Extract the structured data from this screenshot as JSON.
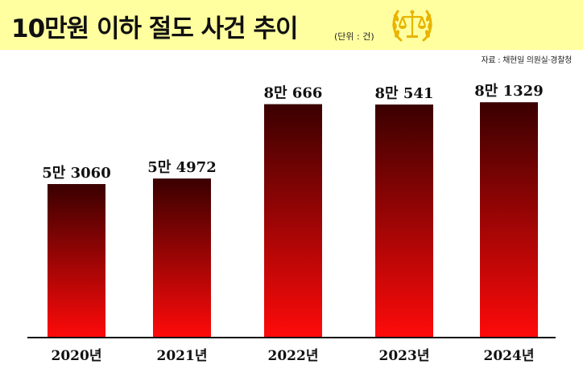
{
  "header": {
    "title": "10만원 이하 절도 사건 추이",
    "unit": "(단위 : 건)",
    "source": "자료 : 채현일 의원실·경찰청",
    "emblem_icon": "scales-of-justice-icon"
  },
  "colors": {
    "header_bg": "#ffffa0",
    "bar_top": "#3a0000",
    "bar_bottom": "#ff0a0a",
    "emblem_gold": "#e8b400"
  },
  "chart_data": {
    "type": "bar",
    "categories": [
      "2020년",
      "2021년",
      "2022년",
      "2023년",
      "2024년"
    ],
    "values": [
      53060,
      54972,
      80666,
      80541,
      81329
    ],
    "value_labels": [
      "5만 3060",
      "5만 4972",
      "8만 666",
      "8만 541",
      "8만 1329"
    ],
    "title": "10만원 이하 절도 사건 추이",
    "xlabel": "",
    "ylabel": "",
    "ylim": [
      0,
      100000
    ],
    "grid": false,
    "legend": "none"
  }
}
